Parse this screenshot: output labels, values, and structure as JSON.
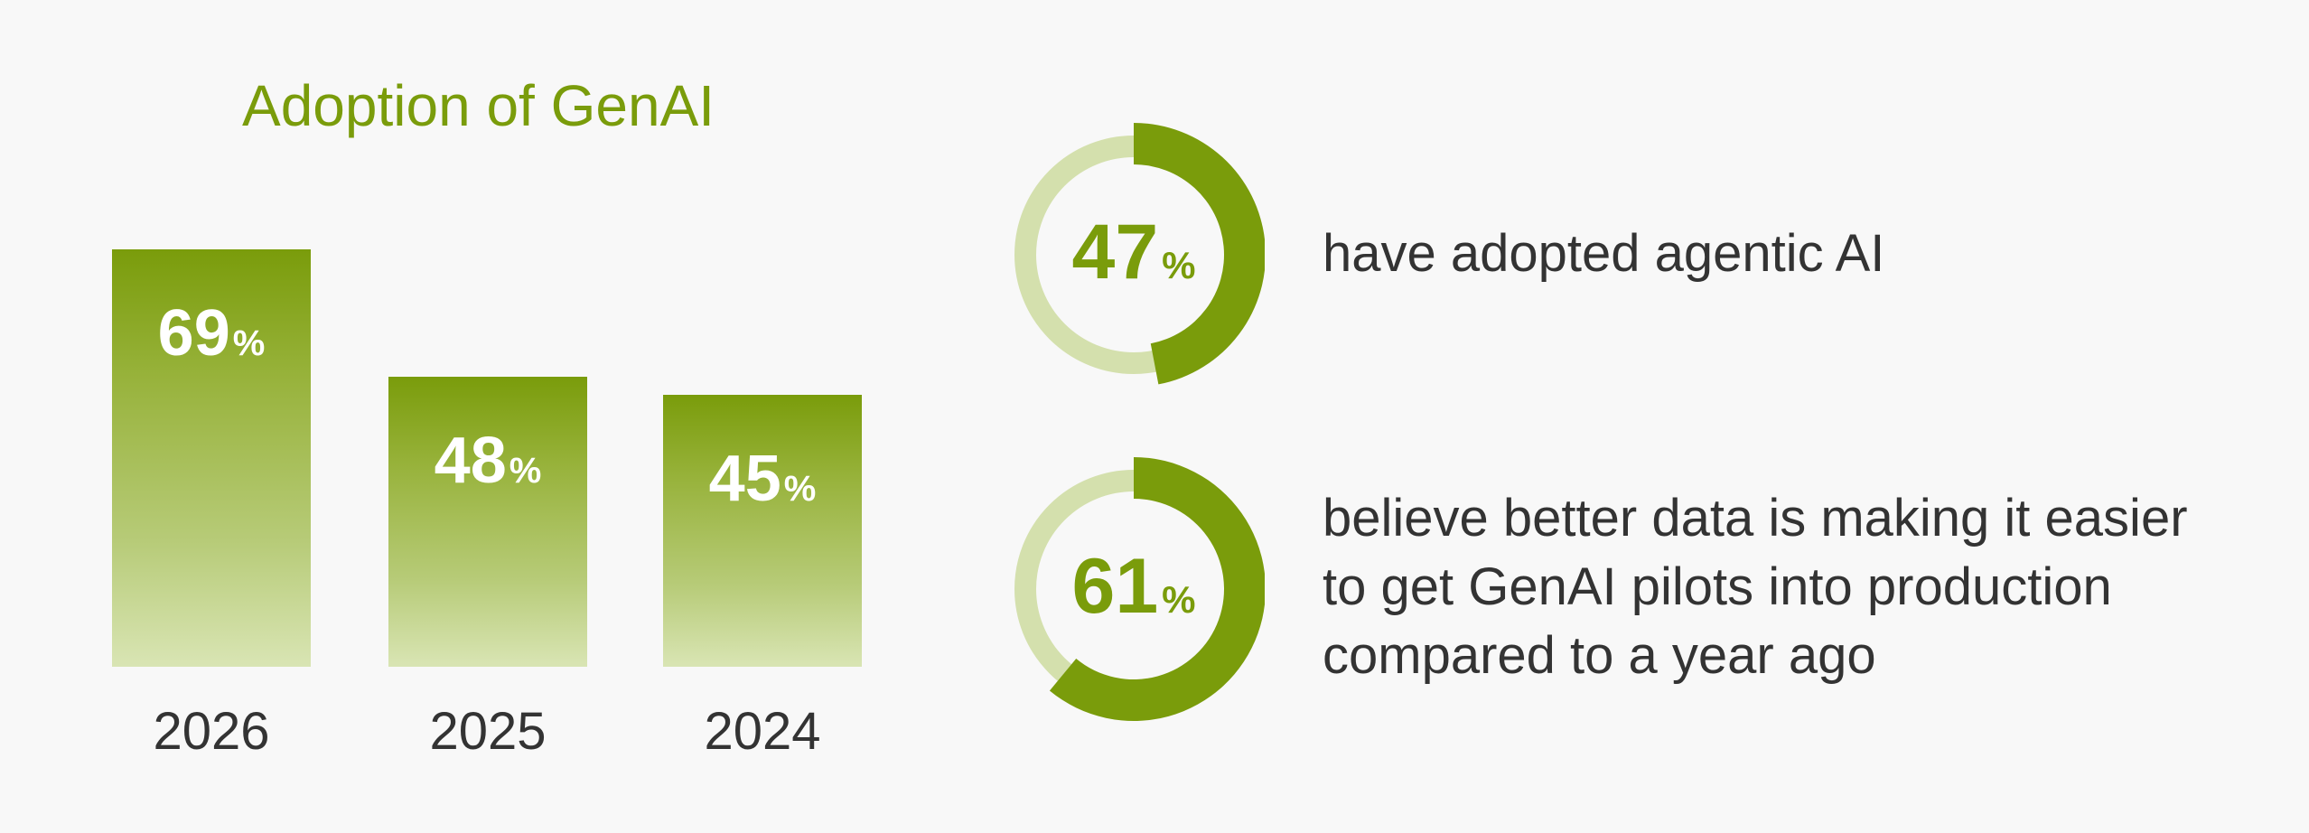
{
  "colors": {
    "accent": "#7a9c0b",
    "accent_light": "#d4e0ad",
    "text": "#333333",
    "background": "#f8f8f8"
  },
  "chart_data": [
    {
      "type": "bar",
      "title": "Adoption of GenAI",
      "categories": [
        "2026",
        "2025",
        "2024"
      ],
      "values": [
        69,
        48,
        45
      ],
      "value_suffix": "%",
      "labels": [
        {
          "value": "69",
          "unit": "%"
        },
        {
          "value": "48",
          "unit": "%"
        },
        {
          "value": "45",
          "unit": "%"
        }
      ],
      "xlabel": "",
      "ylabel": "",
      "ylim": [
        0,
        69
      ]
    },
    {
      "type": "pie",
      "title": "",
      "stats": [
        {
          "value": 47,
          "value_text": "47",
          "unit": "%",
          "lines": [
            "have adopted agentic AI"
          ]
        },
        {
          "value": 61,
          "value_text": "61",
          "unit": "%",
          "lines": [
            "believe better data is making it easier",
            "to get GenAI pilots into production",
            "compared to a year ago"
          ]
        }
      ]
    }
  ]
}
